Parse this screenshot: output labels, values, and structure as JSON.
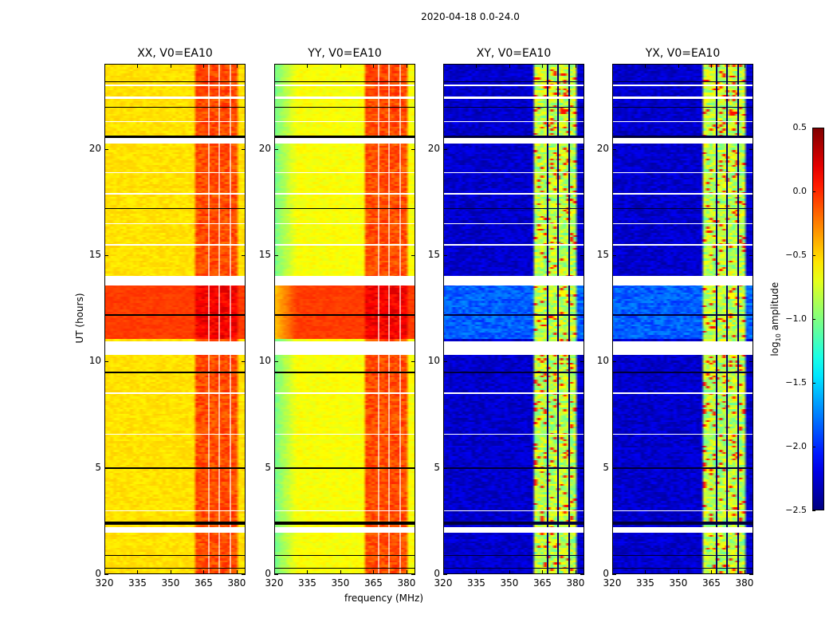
{
  "chart_data": {
    "type": "heatmap",
    "title": "2020-04-18 0.0-24.0",
    "xlabel": "frequency (MHz)",
    "ylabel": "UT (hours)",
    "xlim": [
      320,
      384
    ],
    "ylim": [
      0,
      24
    ],
    "xticks": [
      "320",
      "335",
      "350",
      "365",
      "380"
    ],
    "xtick_values": [
      320,
      335,
      350,
      365,
      380
    ],
    "yticks": [
      "0",
      "5",
      "10",
      "15",
      "20"
    ],
    "ytick_values": [
      0,
      5,
      10,
      15,
      20
    ],
    "panels": [
      {
        "title": "XX, V0=EA10",
        "kind": "parallel",
        "background_log_amp": -0.6,
        "band_log_amp": -0.1,
        "bright_interval_log_amp": 0.0
      },
      {
        "title": "YY, V0=EA10",
        "kind": "parallel",
        "background_log_amp": -0.7,
        "band_log_amp": -0.1,
        "bright_interval_log_amp": 0.0
      },
      {
        "title": "XY, V0=EA10",
        "kind": "cross",
        "background_log_amp": -2.4,
        "band_log_amp": -0.8,
        "bright_interval_log_amp": -1.7
      },
      {
        "title": "YX, V0=EA10",
        "kind": "cross",
        "background_log_amp": -2.4,
        "band_log_amp": -0.8,
        "bright_interval_log_amp": -1.7
      }
    ],
    "bright_interval_hours": [
      11.0,
      13.6
    ],
    "rfi_band_mhz": [
      362,
      380
    ],
    "channel_gaps_mhz": [
      366.5,
      371.5,
      376.5
    ],
    "flagged_white_hours": [
      [
        2.0,
        2.25
      ],
      [
        10.35,
        11.0
      ],
      [
        13.6,
        14.05
      ],
      [
        20.3,
        20.55
      ],
      [
        8.5,
        8.6
      ],
      [
        22.4,
        22.5
      ],
      [
        6.6,
        6.65
      ],
      [
        15.5,
        15.55
      ],
      [
        17.9,
        17.95
      ],
      [
        18.9,
        18.95
      ],
      [
        16.5,
        16.55
      ],
      [
        3.0,
        3.05
      ],
      [
        21.3,
        21.35
      ],
      [
        23.0,
        23.05
      ]
    ],
    "black_line_hours": [
      [
        2.35,
        2.5
      ],
      [
        0.9,
        0.95
      ],
      [
        20.55,
        20.65
      ],
      [
        5.0,
        5.05
      ],
      [
        12.2,
        12.25
      ],
      [
        9.5,
        9.55
      ],
      [
        17.2,
        17.25
      ],
      [
        0.3,
        0.33
      ],
      [
        23.2,
        23.23
      ],
      [
        22.0,
        22.03
      ]
    ],
    "colorbar": {
      "label": "log10 amplitude",
      "range": [
        -2.5,
        0.5
      ],
      "ticks": [
        "0.5",
        "0.0",
        "−0.5",
        "−1.0",
        "−1.5",
        "−2.0",
        "−2.5"
      ],
      "tick_values": [
        0.5,
        0.0,
        -0.5,
        -1.0,
        -1.5,
        -2.0,
        -2.5
      ],
      "colormap": "jet"
    }
  }
}
